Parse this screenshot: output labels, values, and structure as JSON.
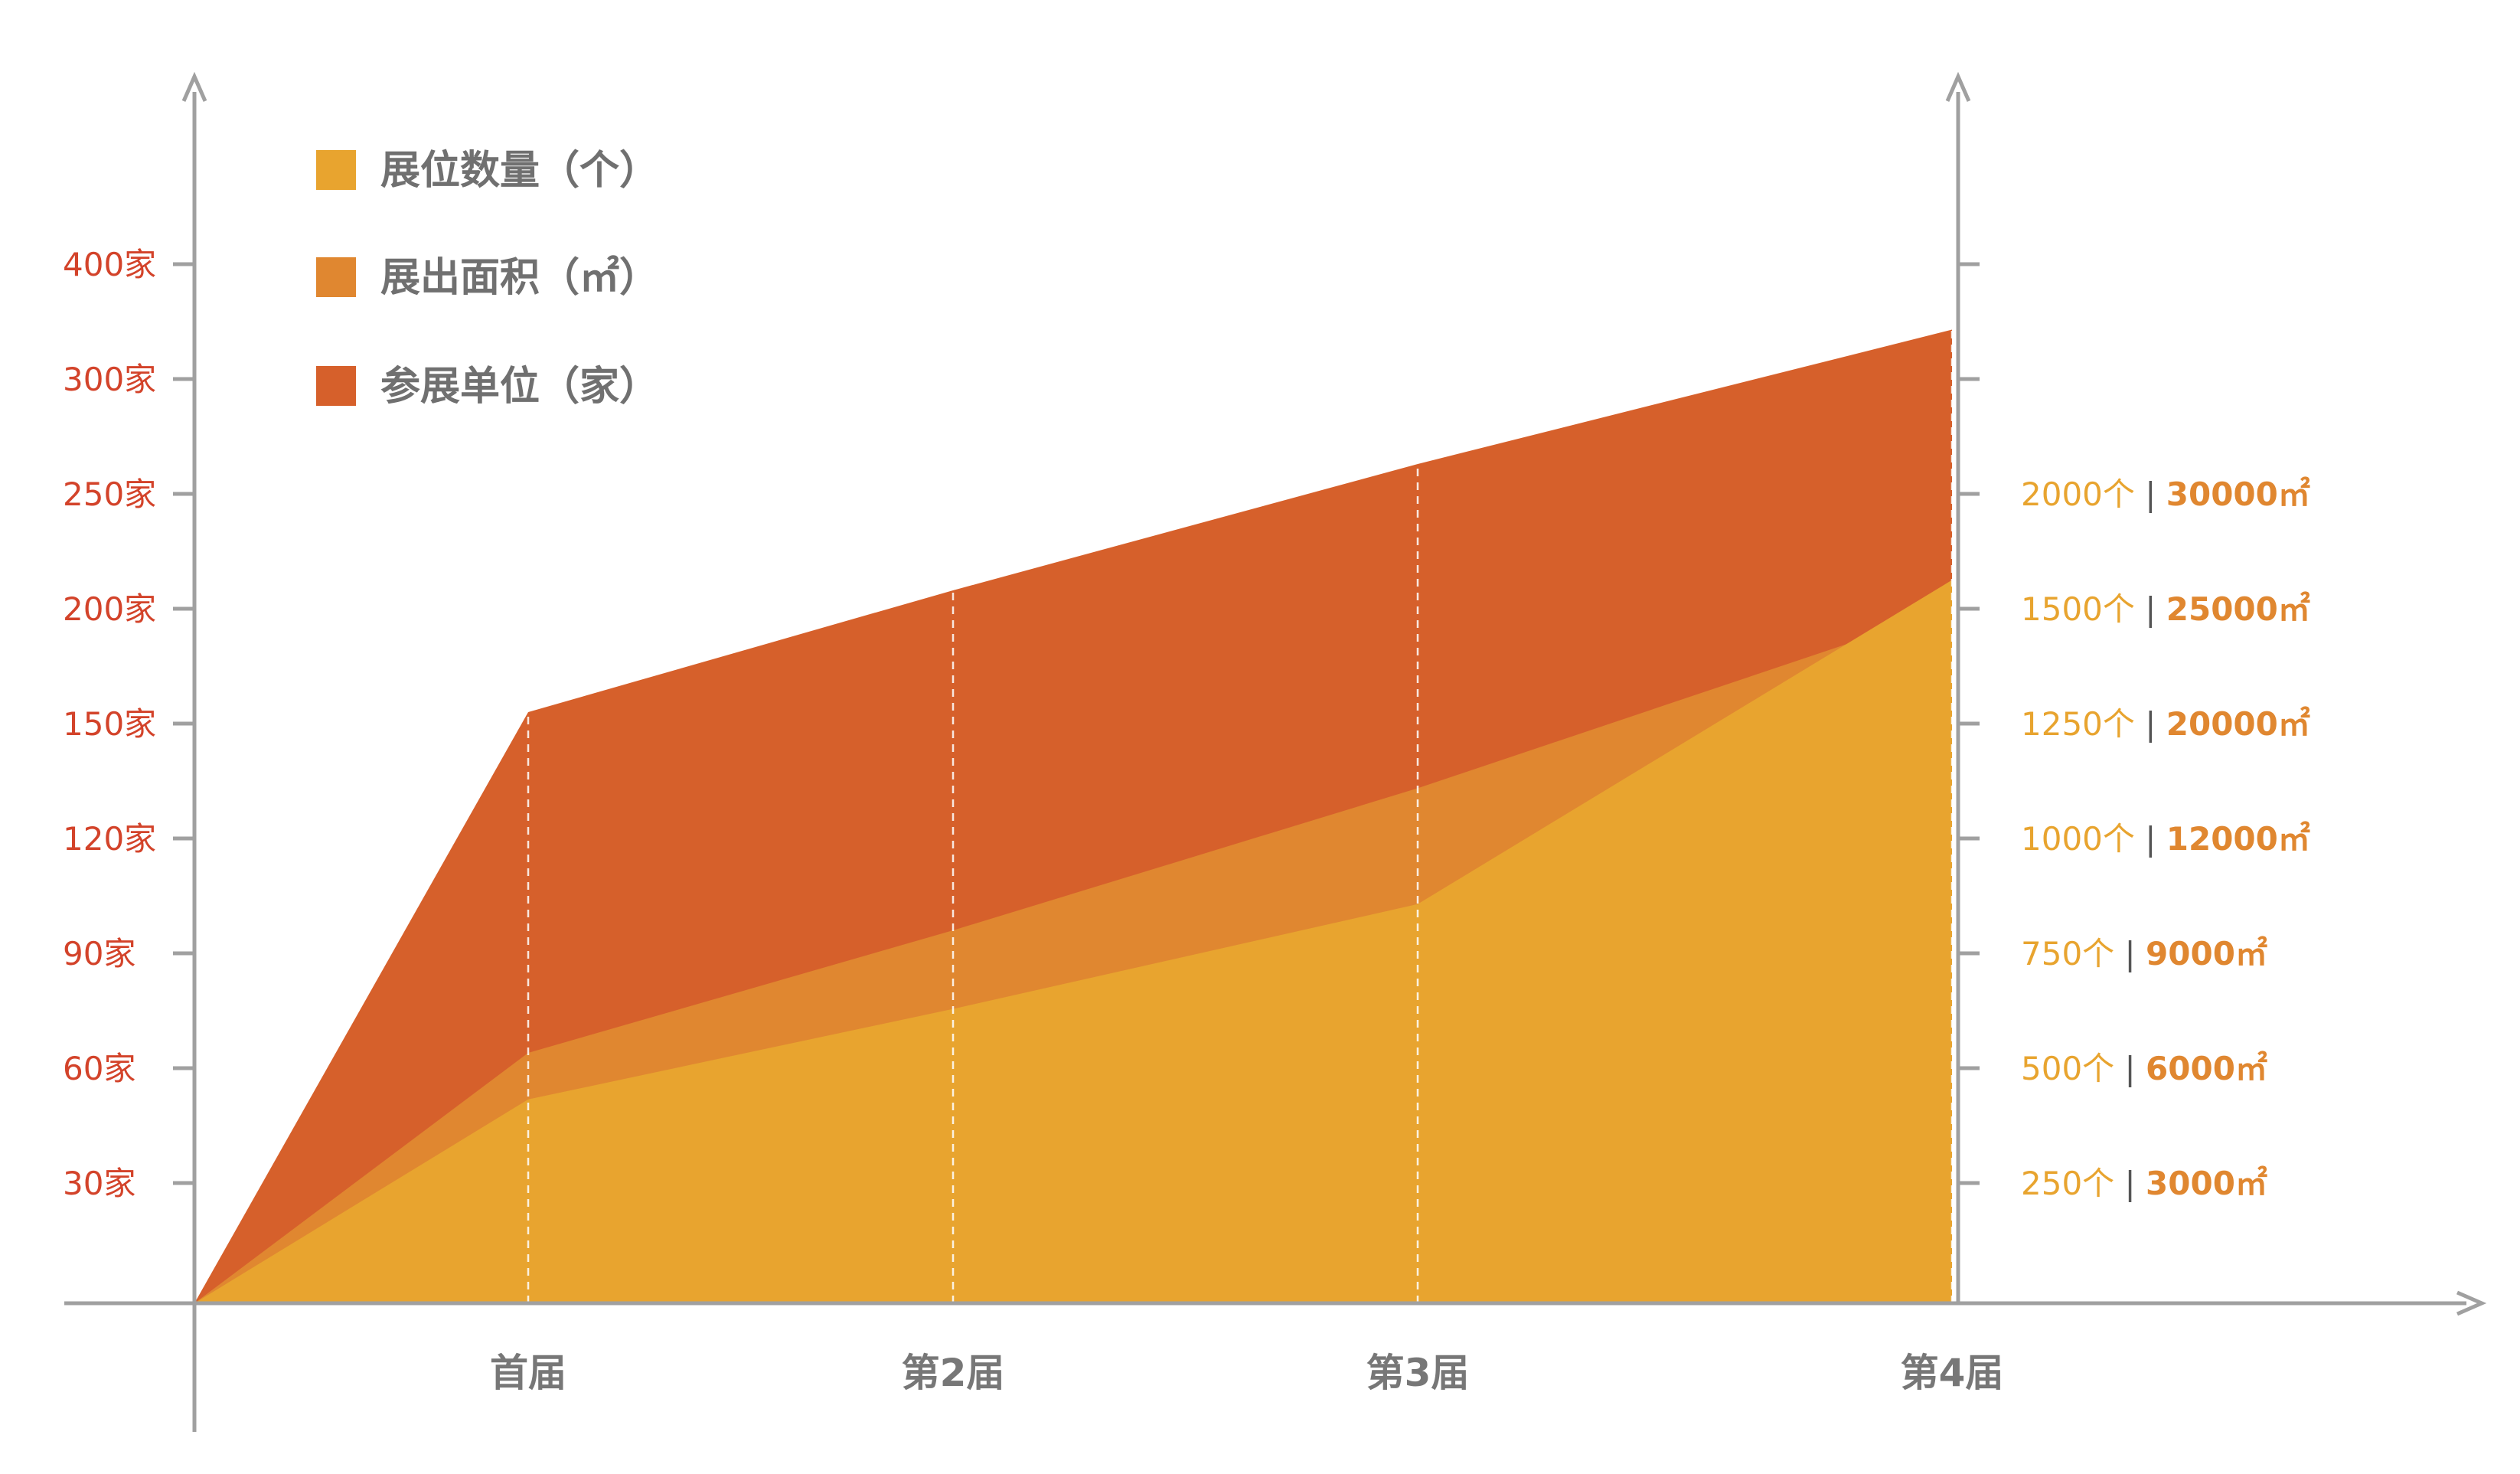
{
  "chart_data": {
    "type": "area",
    "stacking": "overlapping",
    "title": "",
    "categories": [
      "首届",
      "第2届",
      "第3届",
      "第4届"
    ],
    "x_origin_label": "",
    "series": [
      {
        "name": "展位数量（个）",
        "color": "#E8A42F",
        "values": [
          432,
          629,
          857,
          1625
        ]
      },
      {
        "name": "展出面积（㎡）",
        "color": "#E08730",
        "values": [
          6400,
          9600,
          15500,
          25000
        ]
      },
      {
        "name": "参展单位（家）",
        "color": "#D6602B",
        "values": [
          155,
          208,
          263,
          343
        ]
      }
    ],
    "left_axis": {
      "ticks": [
        "30家",
        "60家",
        "90家",
        "120家",
        "150家",
        "200家",
        "250家",
        "300家",
        "400家"
      ],
      "color": "#D3432A"
    },
    "right_axis": {
      "ticks": [
        {
          "count": "250个",
          "sep": "|",
          "area": "3000㎡"
        },
        {
          "count": "500个",
          "sep": "|",
          "area": "6000㎡"
        },
        {
          "count": "750个",
          "sep": "|",
          "area": "9000㎡"
        },
        {
          "count": "1000个",
          "sep": "|",
          "area": "12000㎡"
        },
        {
          "count": "1250个",
          "sep": "|",
          "area": "20000㎡"
        },
        {
          "count": "1500个",
          "sep": "|",
          "area": "25000㎡"
        },
        {
          "count": "2000个",
          "sep": "|",
          "area": "30000㎡"
        }
      ],
      "count_color": "#E8A42F",
      "area_color": "#E08730",
      "sep_color": "#555555"
    },
    "axis_color": "#A0A0A0",
    "legend_position": "top-left"
  }
}
